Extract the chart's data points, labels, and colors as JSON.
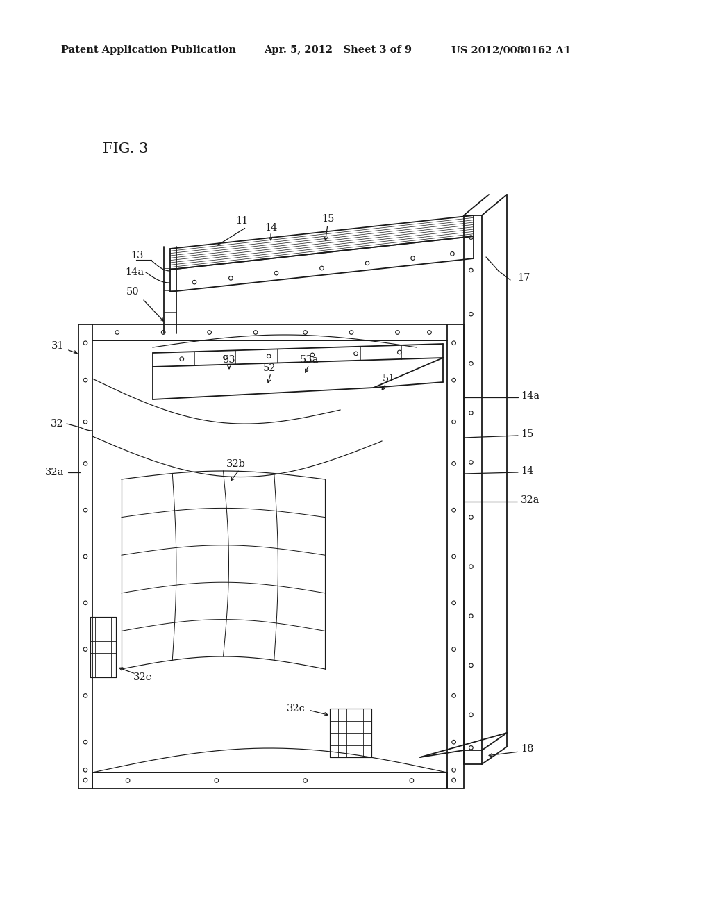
{
  "header_left": "Patent Application Publication",
  "header_mid": "Apr. 5, 2012   Sheet 3 of 9",
  "header_right": "US 2012/0080162 A1",
  "fig_label": "FIG. 3",
  "background_color": "#ffffff",
  "line_color": "#1a1a1a",
  "annotation_fontsize": 10.5,
  "fig_label_fontsize": 15,
  "header_fontsize": 10.5
}
